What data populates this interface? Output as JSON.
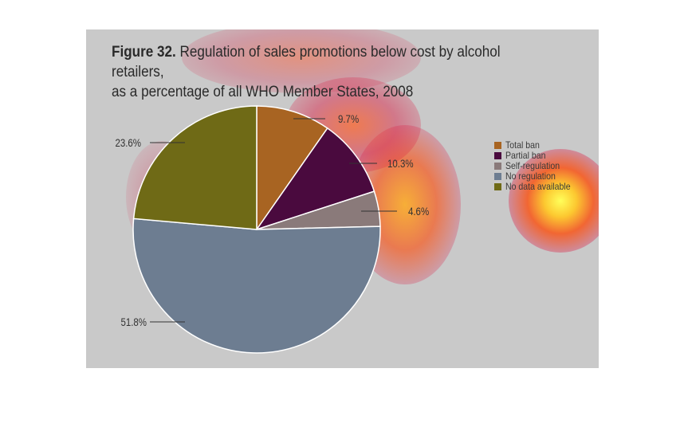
{
  "title": {
    "prefix": "Figure 32.",
    "text": "Regulation of sales promotions below cost by alcohol retailers,",
    "line2": "as a percentage of all WHO Member States, 2008"
  },
  "colors": {
    "panel_bg": "#c9c9c9",
    "heat_core": "#ffff66",
    "heat_mid": "#ff4500",
    "heat_edge": "#dc143c"
  },
  "chart_data": {
    "type": "pie",
    "title": "Regulation of sales promotions below cost by alcohol retailers, as a percentage of all WHO Member States, 2008",
    "slices": [
      {
        "label": "Total ban",
        "value": 9.7,
        "value_label": "9.7%",
        "color": "#a86422"
      },
      {
        "label": "Partial ban",
        "value": 10.3,
        "value_label": "10.3%",
        "color": "#4a0a3e"
      },
      {
        "label": "Self-regulation",
        "value": 4.6,
        "value_label": "4.6%",
        "color": "#8a7a7a"
      },
      {
        "label": "No regulation",
        "value": 51.8,
        "value_label": "51.8%",
        "color": "#6d7d91"
      },
      {
        "label": "No data available",
        "value": 23.6,
        "value_label": "23.6%",
        "color": "#6f6a16"
      }
    ],
    "legend_placement": "right"
  }
}
